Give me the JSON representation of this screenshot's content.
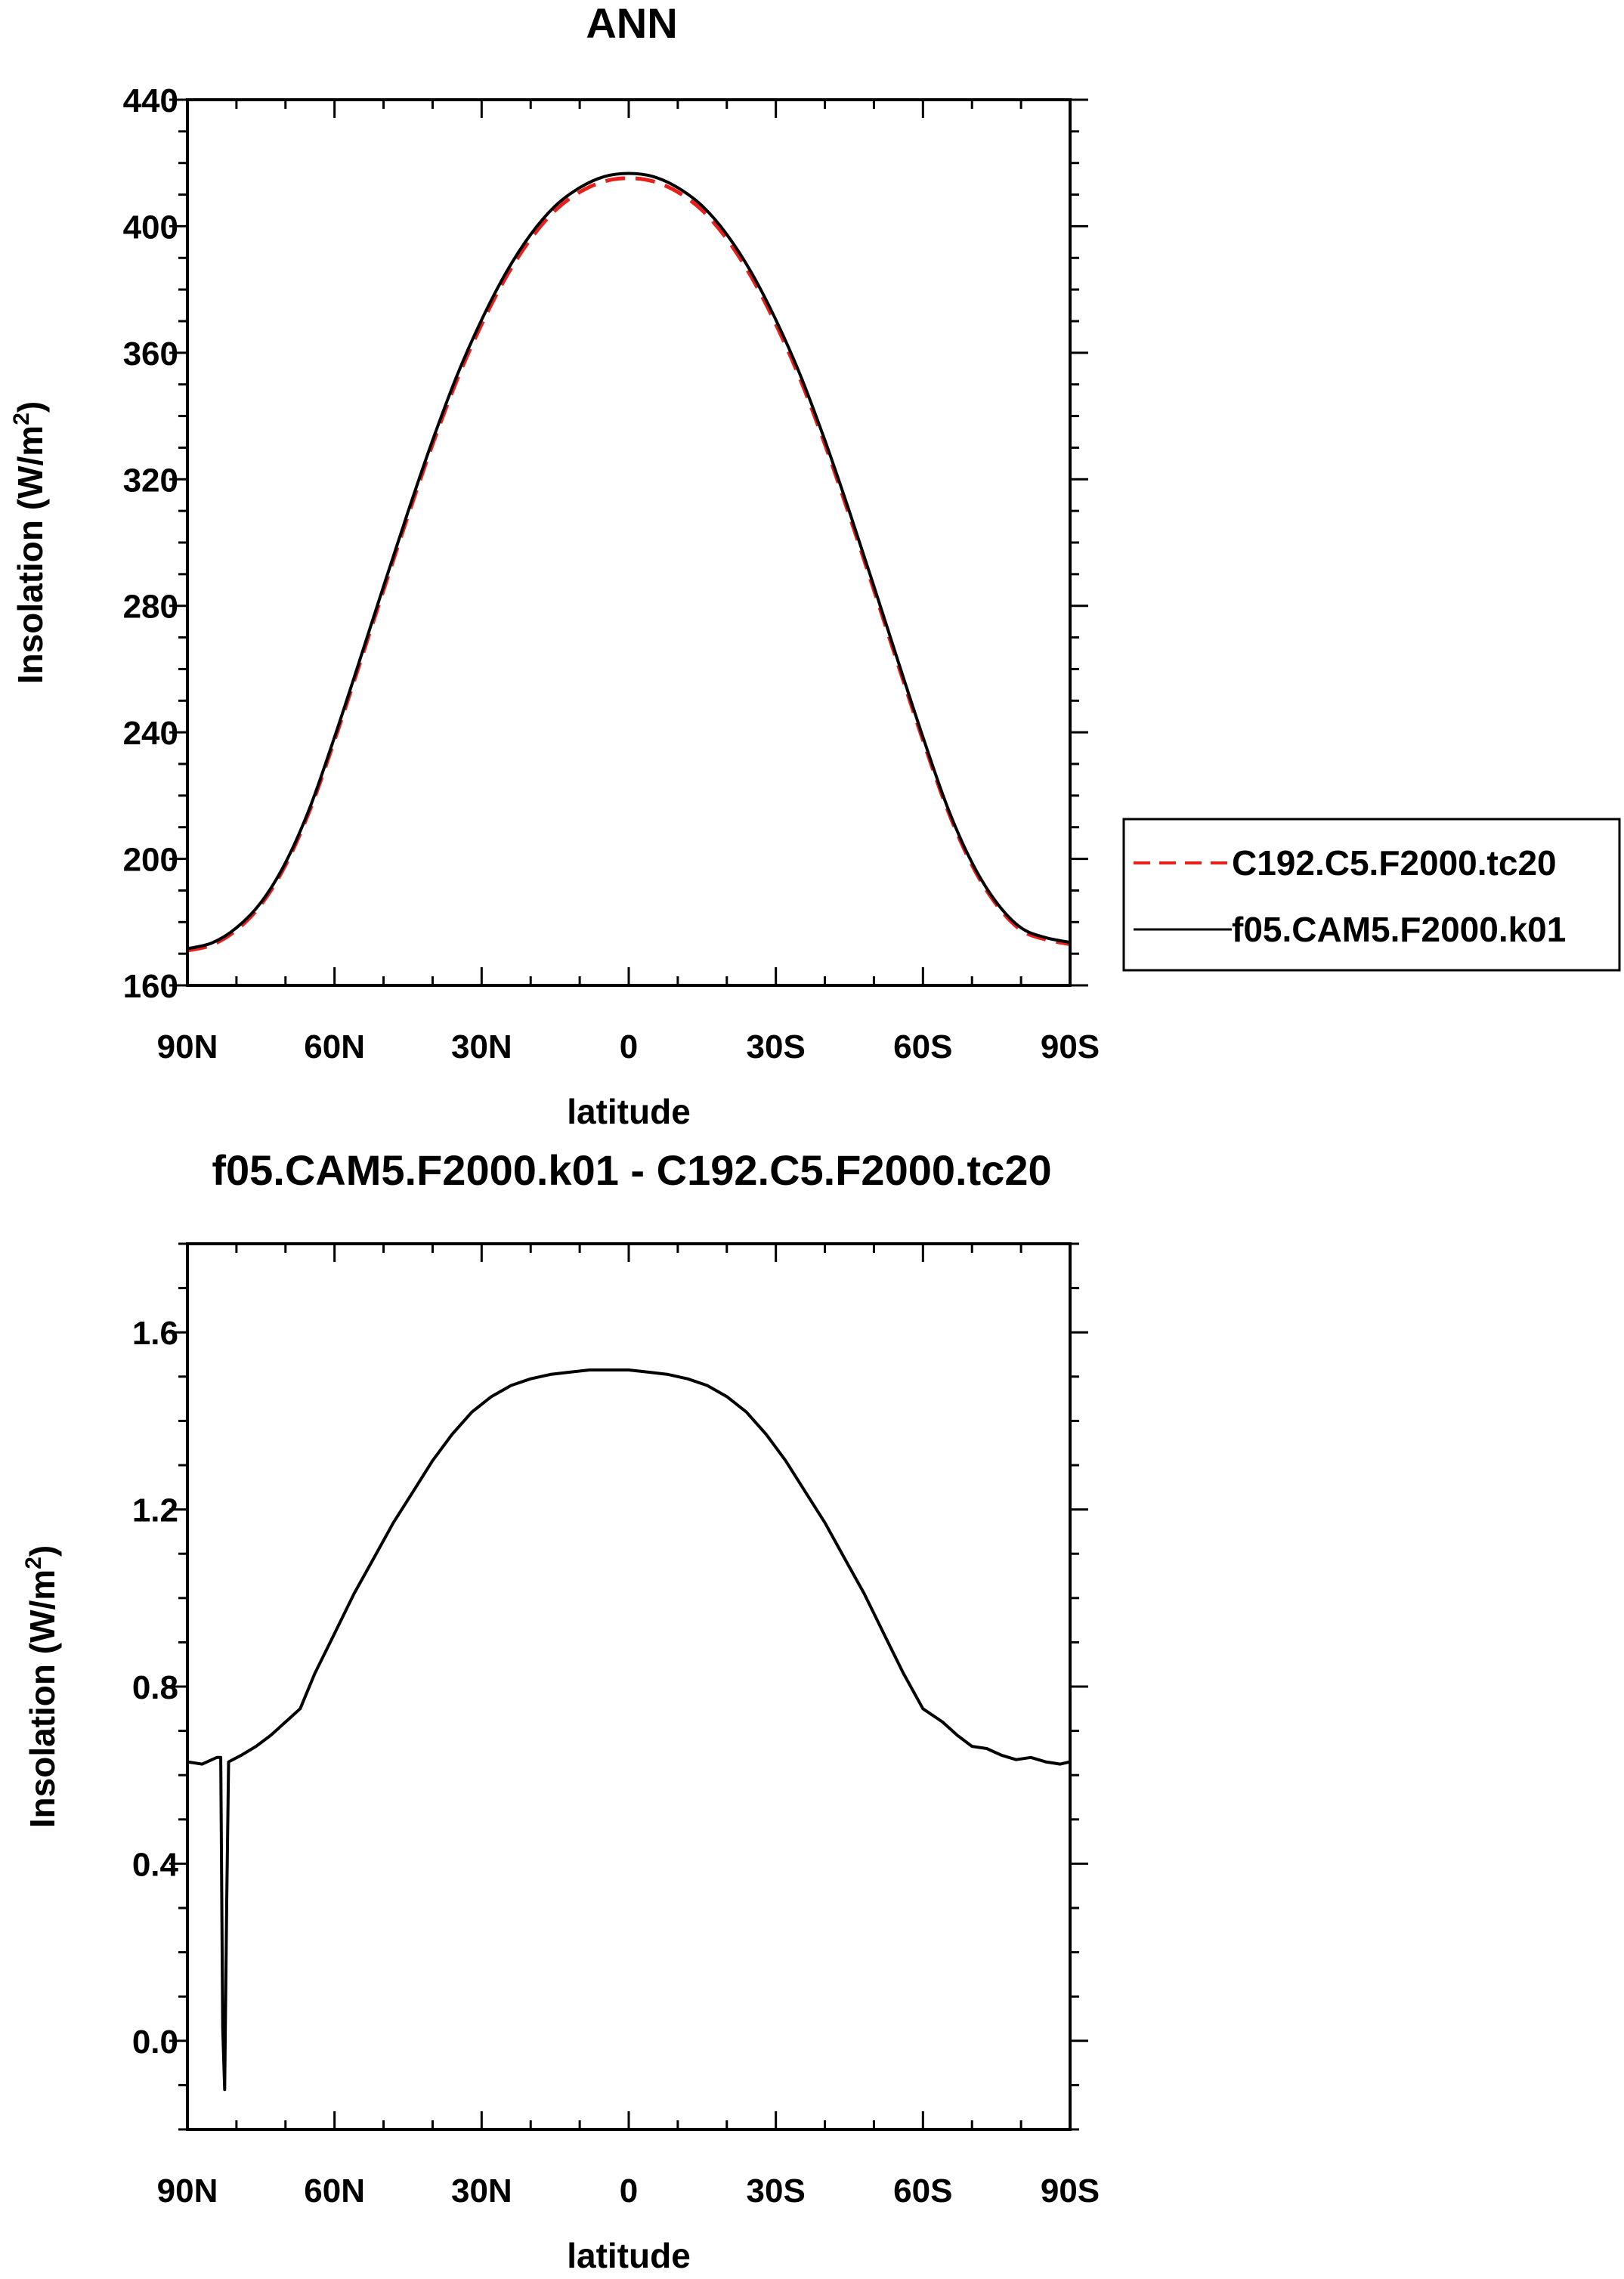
{
  "chart_data": [
    {
      "type": "line",
      "title": "ANN",
      "xlabel": "latitude",
      "ylabel": "Insolation (W/m",
      "ylabel_sup": "2",
      "ylabel_close": ")",
      "xlim": [
        90,
        -90
      ],
      "ylim": [
        160,
        440
      ],
      "xticks": [
        90,
        60,
        30,
        0,
        -30,
        -60,
        -90
      ],
      "xtick_labels": [
        "90N",
        "60N",
        "30N",
        "0",
        "30S",
        "60S",
        "90S"
      ],
      "yticks": [
        160,
        200,
        240,
        280,
        320,
        360,
        400,
        440
      ],
      "ytick_labels": [
        "160",
        "200",
        "240",
        "280",
        "320",
        "360",
        "400",
        "440"
      ],
      "grid": false,
      "legend_position": "right",
      "x": [
        90,
        85,
        80,
        75,
        70,
        65,
        60,
        55,
        50,
        45,
        40,
        35,
        30,
        25,
        20,
        15,
        10,
        5,
        0,
        -5,
        -10,
        -15,
        -20,
        -25,
        -30,
        -35,
        -40,
        -45,
        -50,
        -55,
        -60,
        -65,
        -70,
        -75,
        -80,
        -85,
        -90
      ],
      "series": [
        {
          "name": "C192.C5.F2000.tc20",
          "color": "#e8201c",
          "dash": "dashed",
          "values": [
            171.0,
            172.8,
            177.5,
            185.5,
            198.0,
            215.5,
            237.5,
            261.0,
            285.0,
            308.5,
            331.0,
            351.5,
            369.0,
            384.0,
            396.0,
            405.0,
            410.8,
            414.2,
            415.2,
            414.2,
            410.8,
            405.0,
            396.0,
            384.0,
            369.0,
            351.5,
            331.0,
            308.5,
            285.0,
            261.0,
            237.5,
            215.5,
            198.0,
            185.5,
            177.5,
            174.5,
            173.0
          ]
        },
        {
          "name": "f05.CAM5.F2000.k01",
          "color": "#000000",
          "dash": "solid",
          "values": [
            171.6,
            173.4,
            178.2,
            186.2,
            198.8,
            216.3,
            238.5,
            262.1,
            286.2,
            309.8,
            332.3,
            352.9,
            370.4,
            385.4,
            397.4,
            406.4,
            412.2,
            415.7,
            416.7,
            415.7,
            412.2,
            406.4,
            397.4,
            385.4,
            370.4,
            352.9,
            332.3,
            309.8,
            286.2,
            262.1,
            238.5,
            216.3,
            198.8,
            186.2,
            178.2,
            175.1,
            173.6
          ]
        }
      ]
    },
    {
      "type": "line",
      "title": "f05.CAM5.F2000.k01 - C192.C5.F2000.tc20",
      "xlabel": "latitude",
      "ylabel": "Insolation (W/m",
      "ylabel_sup": "2",
      "ylabel_close": ")",
      "xlim": [
        90,
        -90
      ],
      "ylim": [
        -0.2,
        1.8
      ],
      "xticks": [
        90,
        60,
        30,
        0,
        -30,
        -60,
        -90
      ],
      "xtick_labels": [
        "90N",
        "60N",
        "30N",
        "0",
        "30S",
        "60S",
        "90S"
      ],
      "yticks": [
        0.0,
        0.4,
        0.8,
        1.2,
        1.6
      ],
      "ytick_labels": [
        "0.0",
        "0.4",
        "0.8",
        "1.2",
        "1.6"
      ],
      "grid": false,
      "series": [
        {
          "name": "f05.CAM5.F2000.k01 - C192.C5.F2000.tc20",
          "color": "#000000",
          "dash": "solid",
          "x": [
            90,
            87,
            84,
            83.2,
            82.8,
            82.4,
            82.0,
            81.6,
            79,
            76,
            73,
            70,
            67,
            64,
            60,
            56,
            52,
            48,
            44,
            40,
            36,
            32,
            28,
            24,
            20,
            16,
            12,
            8,
            4,
            0,
            -4,
            -8,
            -12,
            -16,
            -20,
            -24,
            -28,
            -32,
            -36,
            -40,
            -44,
            -48,
            -52,
            -56,
            -60,
            -64,
            -67,
            -70,
            -73,
            -76,
            -79,
            -82,
            -85,
            -88,
            -90
          ],
          "values": [
            0.63,
            0.625,
            0.64,
            0.64,
            0.03,
            -0.11,
            0.3,
            0.63,
            0.645,
            0.665,
            0.69,
            0.72,
            0.75,
            0.83,
            0.92,
            1.01,
            1.09,
            1.17,
            1.24,
            1.31,
            1.37,
            1.42,
            1.455,
            1.48,
            1.495,
            1.505,
            1.51,
            1.515,
            1.515,
            1.515,
            1.51,
            1.505,
            1.495,
            1.48,
            1.455,
            1.42,
            1.37,
            1.31,
            1.24,
            1.17,
            1.09,
            1.01,
            0.92,
            0.83,
            0.75,
            0.72,
            0.69,
            0.665,
            0.66,
            0.645,
            0.635,
            0.64,
            0.63,
            0.625,
            0.63
          ]
        }
      ]
    }
  ]
}
